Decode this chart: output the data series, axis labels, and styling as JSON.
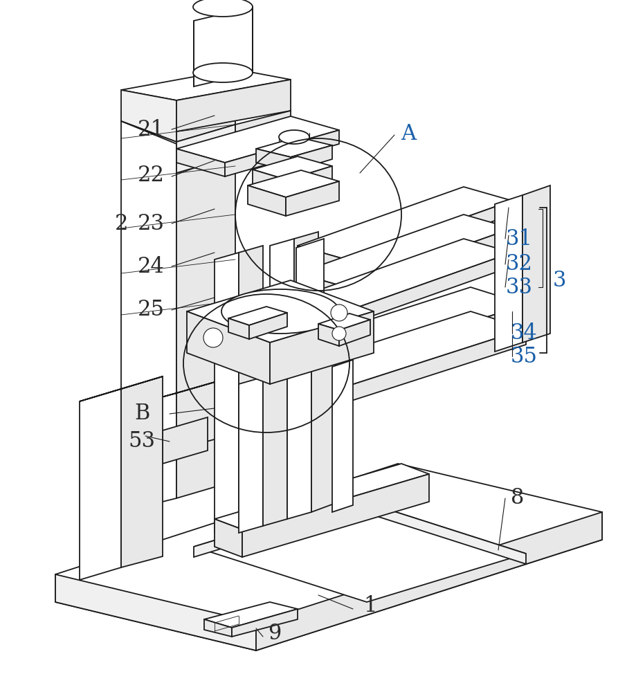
{
  "bg_color": "#ffffff",
  "line_color": "#1a1a1a",
  "label_color_black": "#2a2a2a",
  "label_color_blue": "#1a5fa8",
  "fig_width": 8.93,
  "fig_height": 10.0,
  "lw_main": 1.3,
  "lw_thin": 0.8,
  "lw_detail": 0.6
}
